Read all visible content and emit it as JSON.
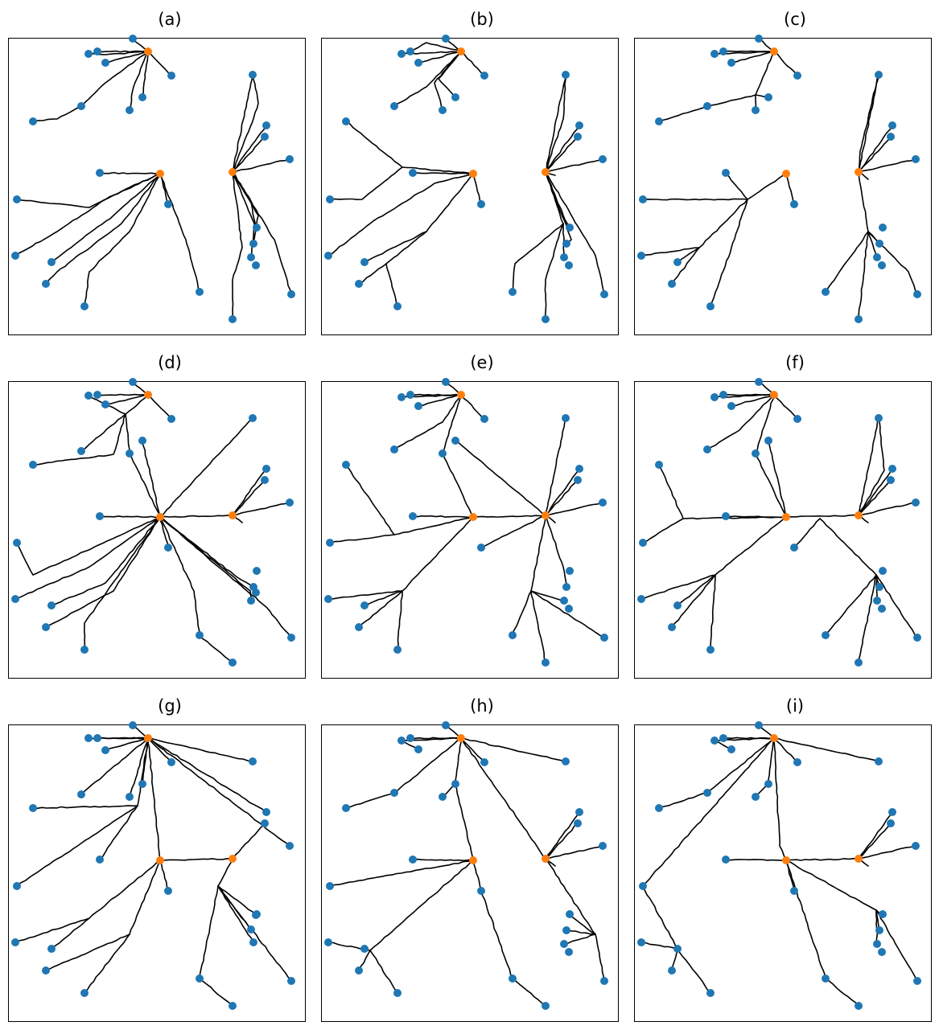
{
  "colors": {
    "sink": "#1f77b4",
    "source": "#ff7f0e",
    "edge": "#000000"
  },
  "panels": [
    {
      "label": "(a)"
    },
    {
      "label": "(b)"
    },
    {
      "label": "(c)"
    },
    {
      "label": "(d)"
    },
    {
      "label": "(e)"
    },
    {
      "label": "(f)"
    },
    {
      "label": "(g)"
    },
    {
      "label": "(h)"
    },
    {
      "label": "(i)"
    }
  ]
}
